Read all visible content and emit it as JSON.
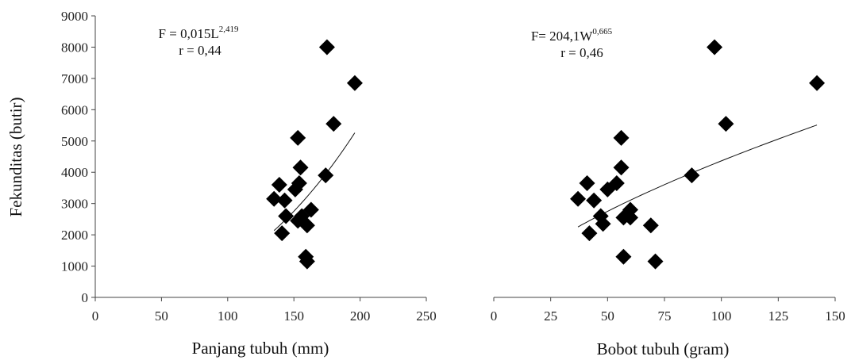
{
  "chart_data": [
    {
      "type": "scatter",
      "xlabel": "Panjang tubuh (mm)",
      "ylabel": "Fekunditas (butir)",
      "xlim": [
        0,
        250
      ],
      "ylim": [
        0,
        9000
      ],
      "xticks": [
        0,
        50,
        100,
        150,
        200,
        250
      ],
      "yticks": [
        0,
        1000,
        2000,
        3000,
        4000,
        5000,
        6000,
        7000,
        8000,
        9000
      ],
      "tick_labels_x": [
        "0",
        "50",
        "100",
        "150",
        "200",
        "250"
      ],
      "tick_labels_y": [
        "0",
        "1000",
        "2000",
        "3000",
        "4000",
        "5000",
        "6000",
        "7000",
        "8000",
        "9000"
      ],
      "grid": false,
      "equation": {
        "base": "F = 0,015L",
        "exp": "2,419",
        "r": "r = 0,44"
      },
      "fit": {
        "a": 0.015,
        "b": 2.419,
        "x_range": [
          135,
          196
        ]
      },
      "points": [
        {
          "x": 135,
          "y": 3150
        },
        {
          "x": 139,
          "y": 3600
        },
        {
          "x": 141,
          "y": 2050
        },
        {
          "x": 143,
          "y": 3100
        },
        {
          "x": 144,
          "y": 2600
        },
        {
          "x": 151,
          "y": 3450
        },
        {
          "x": 153,
          "y": 5100
        },
        {
          "x": 153,
          "y": 2450
        },
        {
          "x": 154,
          "y": 3650
        },
        {
          "x": 155,
          "y": 4150
        },
        {
          "x": 156,
          "y": 2600
        },
        {
          "x": 159,
          "y": 1300
        },
        {
          "x": 160,
          "y": 2300
        },
        {
          "x": 160,
          "y": 1150
        },
        {
          "x": 163,
          "y": 2800
        },
        {
          "x": 174,
          "y": 3900
        },
        {
          "x": 175,
          "y": 8000
        },
        {
          "x": 180,
          "y": 5550
        },
        {
          "x": 196,
          "y": 6850
        }
      ]
    },
    {
      "type": "scatter",
      "xlabel": "Bobot tubuh (gram)",
      "ylabel": "",
      "xlim": [
        0,
        150
      ],
      "ylim": [
        0,
        9000
      ],
      "xticks": [
        0,
        25,
        50,
        75,
        100,
        125,
        150
      ],
      "yticks": [
        0,
        1000,
        2000,
        3000,
        4000,
        5000,
        6000,
        7000,
        8000,
        9000
      ],
      "tick_labels_x": [
        "0",
        "25",
        "50",
        "75",
        "100",
        "125",
        "150"
      ],
      "grid": false,
      "equation": {
        "base": "F= 204,1W",
        "exp": "0,665",
        "r": "r = 0,46"
      },
      "fit": {
        "a": 204.1,
        "b": 0.665,
        "x_range": [
          37,
          142
        ]
      },
      "points": [
        {
          "x": 37,
          "y": 3150
        },
        {
          "x": 41,
          "y": 3650
        },
        {
          "x": 42,
          "y": 2050
        },
        {
          "x": 44,
          "y": 3100
        },
        {
          "x": 47,
          "y": 2600
        },
        {
          "x": 48,
          "y": 2350
        },
        {
          "x": 50,
          "y": 3450
        },
        {
          "x": 54,
          "y": 3650
        },
        {
          "x": 56,
          "y": 5100
        },
        {
          "x": 56,
          "y": 4150
        },
        {
          "x": 57,
          "y": 2550
        },
        {
          "x": 57,
          "y": 1300
        },
        {
          "x": 60,
          "y": 2800
        },
        {
          "x": 60,
          "y": 2550
        },
        {
          "x": 69,
          "y": 2300
        },
        {
          "x": 71,
          "y": 1150
        },
        {
          "x": 87,
          "y": 3900
        },
        {
          "x": 97,
          "y": 8000
        },
        {
          "x": 102,
          "y": 5550
        },
        {
          "x": 142,
          "y": 6850
        }
      ]
    }
  ]
}
